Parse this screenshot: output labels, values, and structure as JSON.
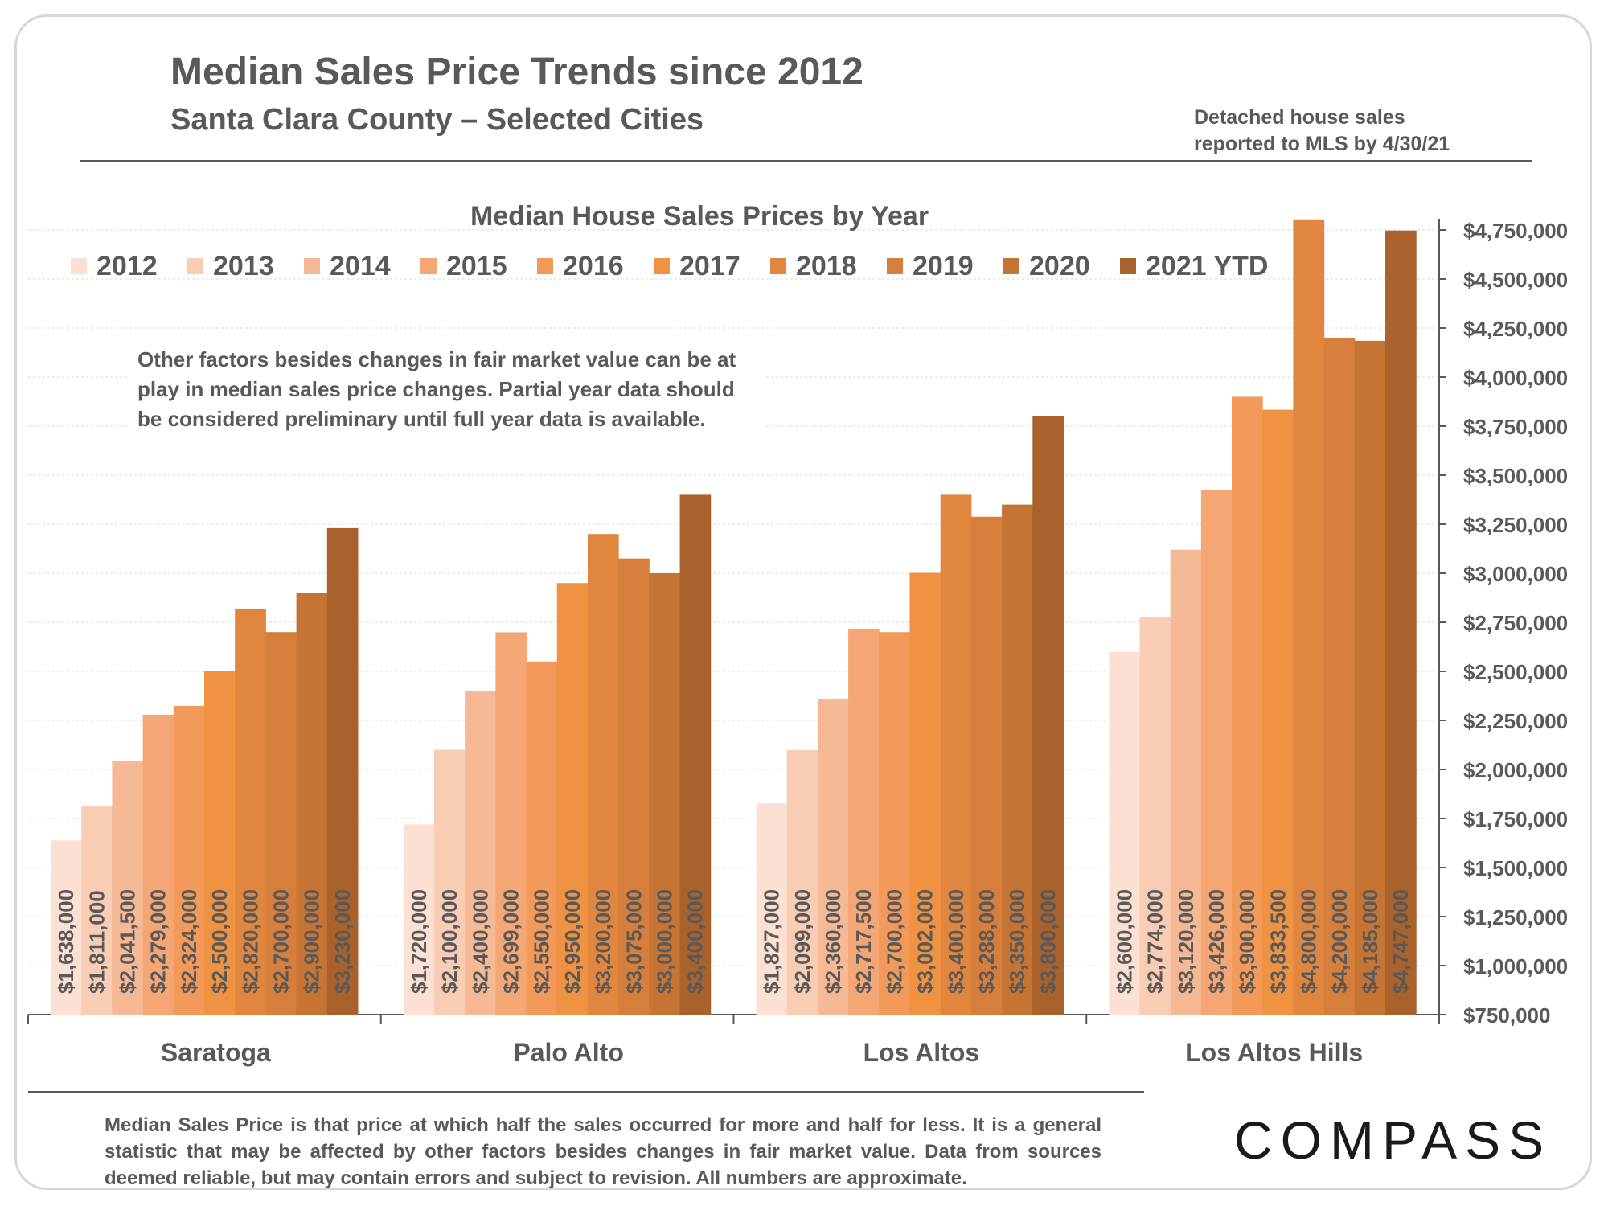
{
  "header": {
    "title": "Median Sales Price Trends since 2012",
    "subtitle": "Santa Clara County – Selected Cities",
    "note_line1": "Detached house sales",
    "note_line2": "reported to MLS by 4/30/21"
  },
  "footer": {
    "caption": "Median Sales Price is that price at which half the sales occurred for more and half for less. It is a general statistic that may be affected by other factors besides changes in fair market value. Data from sources deemed reliable, but may contain errors and subject to revision.  All numbers are approximate.",
    "brand": "COMPASS"
  },
  "chart_data": {
    "type": "bar",
    "title": "Median House Sales Prices by Year",
    "annotation": "Other factors besides changes in fair market value can be at play in median sales price changes. Partial year data should be considered preliminary until full year data is available.",
    "categories": [
      "Saratoga",
      "Palo Alto",
      "Los Altos",
      "Los Altos Hills"
    ],
    "series": [
      {
        "name": "2012",
        "color": "#fbe0d3",
        "values": [
          1638000,
          1720000,
          1827000,
          2600000
        ],
        "labels": [
          "$1,638,000",
          "$1,720,000",
          "$1,827,000",
          "$2,600,000"
        ]
      },
      {
        "name": "2013",
        "color": "#f9cdb3",
        "values": [
          1811000,
          2100000,
          2099000,
          2774000
        ],
        "labels": [
          "$1,811,000",
          "$2,100,000",
          "$2,099,000",
          "$2,774,000"
        ]
      },
      {
        "name": "2014",
        "color": "#f6b995",
        "values": [
          2041500,
          2400000,
          2360000,
          3120000
        ],
        "labels": [
          "$2,041,500",
          "$2,400,000",
          "$2,360,000",
          "$3,120,000"
        ]
      },
      {
        "name": "2015",
        "color": "#f4a775",
        "values": [
          2279000,
          2699000,
          2717500,
          3426000
        ],
        "labels": [
          "$2,279,000",
          "$2,699,000",
          "$2,717,500",
          "$3,426,000"
        ]
      },
      {
        "name": "2016",
        "color": "#f3995a",
        "values": [
          2324000,
          2550000,
          2700000,
          3900000
        ],
        "labels": [
          "$2,324,000",
          "$2,550,000",
          "$2,700,000",
          "$3,900,000"
        ]
      },
      {
        "name": "2017",
        "color": "#ef9241",
        "values": [
          2500000,
          2950000,
          3002000,
          3833500
        ],
        "labels": [
          "$2,500,000",
          "$2,950,000",
          "$3,002,000",
          "$3,833,500"
        ]
      },
      {
        "name": "2018",
        "color": "#e1863f",
        "values": [
          2820000,
          3200000,
          3400000,
          4800000
        ],
        "labels": [
          "$2,820,000",
          "$3,200,000",
          "$3,400,000",
          "$4,800,000"
        ]
      },
      {
        "name": "2019",
        "color": "#d67e3b",
        "values": [
          2700000,
          3075000,
          3288000,
          4200000
        ],
        "labels": [
          "$2,700,000",
          "$3,075,000",
          "$3,288,000",
          "$4,200,000"
        ]
      },
      {
        "name": "2020",
        "color": "#c57434",
        "values": [
          2900000,
          3000000,
          3350000,
          4185000
        ],
        "labels": [
          "$2,900,000",
          "$3,000,000",
          "$3,350,000",
          "$4,185,000"
        ]
      },
      {
        "name": "2021 YTD",
        "color": "#a9622b",
        "values": [
          3230000,
          3400000,
          3800000,
          4747000
        ],
        "labels": [
          "$3,230,000",
          "$3,400,000",
          "$3,800,000",
          "$4,747,000"
        ]
      }
    ],
    "ylim": [
      750000,
      4750000
    ],
    "yticks": [
      750000,
      1000000,
      1250000,
      1500000,
      1750000,
      2000000,
      2250000,
      2500000,
      2750000,
      3000000,
      3250000,
      3500000,
      3750000,
      4000000,
      4250000,
      4500000,
      4750000
    ],
    "ytick_labels": [
      "$750,000",
      "$1,000,000",
      "$1,250,000",
      "$1,500,000",
      "$1,750,000",
      "$2,000,000",
      "$2,250,000",
      "$2,500,000",
      "$2,750,000",
      "$3,000,000",
      "$3,250,000",
      "$3,500,000",
      "$3,750,000",
      "$4,000,000",
      "$4,250,000",
      "$4,500,000",
      "$4,750,000"
    ],
    "y_axis_side": "right",
    "grid": true,
    "legend_position": "top"
  }
}
